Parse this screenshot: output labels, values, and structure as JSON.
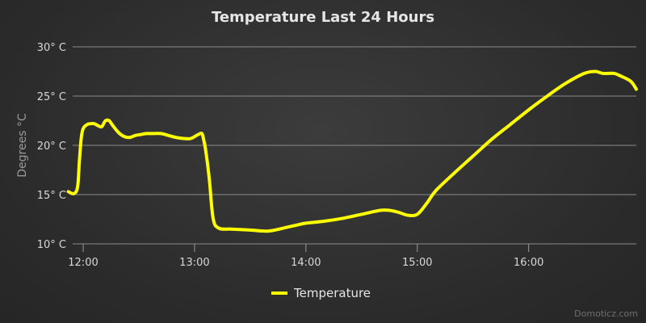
{
  "chart_data": {
    "type": "line",
    "title": "Temperature Last 24 Hours",
    "ylabel": "Degrees °C",
    "xlabel": "",
    "ylim": [
      10,
      30
    ],
    "xlim": [
      "11:50",
      "16:58"
    ],
    "y_ticks": [
      "10° C",
      "15° C",
      "20° C",
      "25° C",
      "30° C"
    ],
    "y_tick_values": [
      10,
      15,
      20,
      25,
      30
    ],
    "x_ticks": [
      "12:00",
      "13:00",
      "14:00",
      "15:00",
      "16:00"
    ],
    "x_tick_values": [
      "12:00",
      "13:00",
      "14:00",
      "15:00",
      "16:00"
    ],
    "grid": "horizontal",
    "legend_position": "bottom-center",
    "series": [
      {
        "name": "Temperature",
        "color": "#ffff00",
        "x": [
          "11:52",
          "11:55",
          "11:57",
          "11:58",
          "11:59",
          "12:00",
          "12:02",
          "12:04",
          "12:06",
          "12:08",
          "12:10",
          "12:12",
          "12:14",
          "12:16",
          "12:19",
          "12:22",
          "12:25",
          "12:28",
          "12:31",
          "12:34",
          "12:38",
          "12:42",
          "12:46",
          "12:50",
          "12:54",
          "12:58",
          "13:02",
          "13:04",
          "13:05",
          "13:06",
          "13:08",
          "13:10",
          "13:13",
          "13:20",
          "13:30",
          "13:40",
          "13:50",
          "13:55",
          "14:00",
          "14:10",
          "14:20",
          "14:30",
          "14:40",
          "14:45",
          "14:50",
          "14:55",
          "15:00",
          "15:05",
          "15:10",
          "15:20",
          "15:30",
          "15:40",
          "15:50",
          "16:00",
          "16:10",
          "16:20",
          "16:30",
          "16:36",
          "16:40",
          "16:46",
          "16:50",
          "16:55",
          "16:58"
        ],
        "values": [
          15.3,
          15.1,
          15.8,
          18.5,
          20.8,
          21.7,
          22.1,
          22.2,
          22.2,
          22.0,
          21.9,
          22.5,
          22.5,
          22.0,
          21.3,
          20.9,
          20.8,
          21.0,
          21.1,
          21.2,
          21.2,
          21.2,
          21.0,
          20.8,
          20.7,
          20.7,
          21.1,
          21.2,
          20.5,
          19.5,
          16.5,
          12.6,
          11.6,
          11.5,
          11.4,
          11.3,
          11.7,
          11.9,
          12.1,
          12.3,
          12.6,
          13.0,
          13.4,
          13.4,
          13.2,
          12.9,
          13.0,
          14.1,
          15.4,
          17.2,
          18.9,
          20.6,
          22.1,
          23.6,
          25.0,
          26.3,
          27.3,
          27.5,
          27.3,
          27.3,
          27.0,
          26.5,
          25.7
        ]
      }
    ]
  },
  "credit": "Domoticz.com"
}
